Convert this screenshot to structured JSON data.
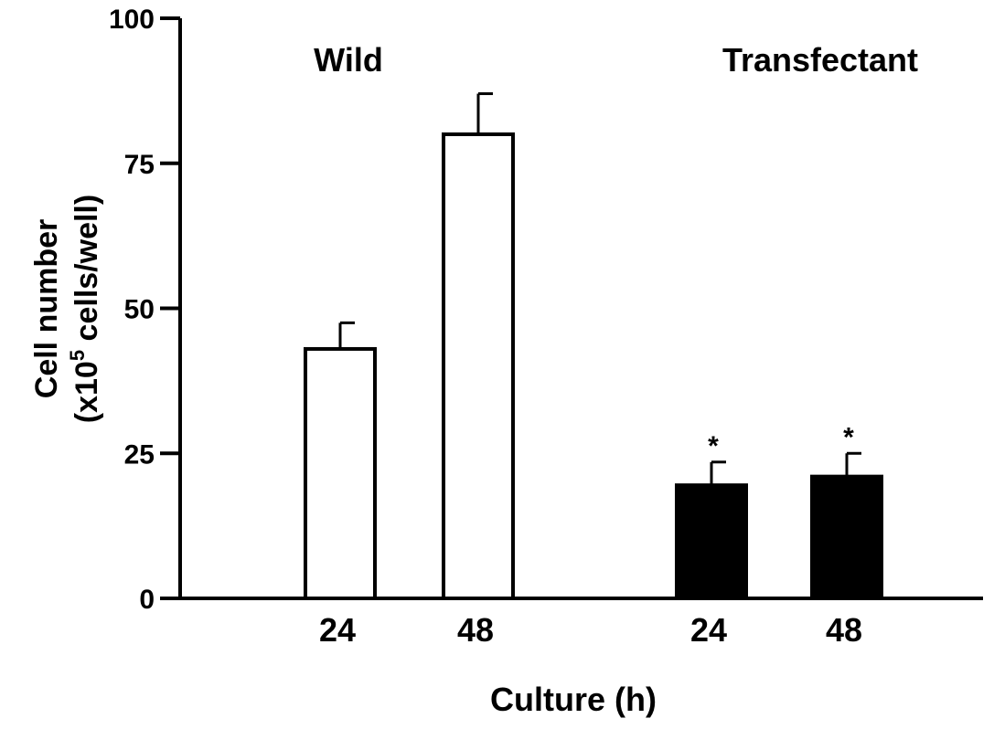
{
  "chart_data": {
    "type": "bar",
    "title": "",
    "xlabel": "Culture (h)",
    "ylabel_line1": "Cell number",
    "ylabel_line2_prefix": "(x10",
    "ylabel_line2_sup": "5",
    "ylabel_line2_suffix": " cells/well)",
    "ylim": [
      0,
      100
    ],
    "yticks": [
      {
        "value": 0,
        "label": "0"
      },
      {
        "value": 25,
        "label": "25"
      },
      {
        "value": 50,
        "label": "50"
      },
      {
        "value": 75,
        "label": "75"
      },
      {
        "value": 100,
        "label": "100"
      }
    ],
    "groups": [
      {
        "name": "Wild",
        "color": "#ffffff",
        "bars": [
          {
            "category": "24",
            "value": 43,
            "error": 4.5,
            "significance": ""
          },
          {
            "category": "48",
            "value": 80,
            "error": 7,
            "significance": ""
          }
        ]
      },
      {
        "name": "Transfectant",
        "color": "#000000",
        "bars": [
          {
            "category": "24",
            "value": 19.5,
            "error": 4,
            "significance": "*"
          },
          {
            "category": "48",
            "value": 21,
            "error": 4,
            "significance": "*"
          }
        ]
      }
    ],
    "grid": false,
    "legend": "none"
  }
}
